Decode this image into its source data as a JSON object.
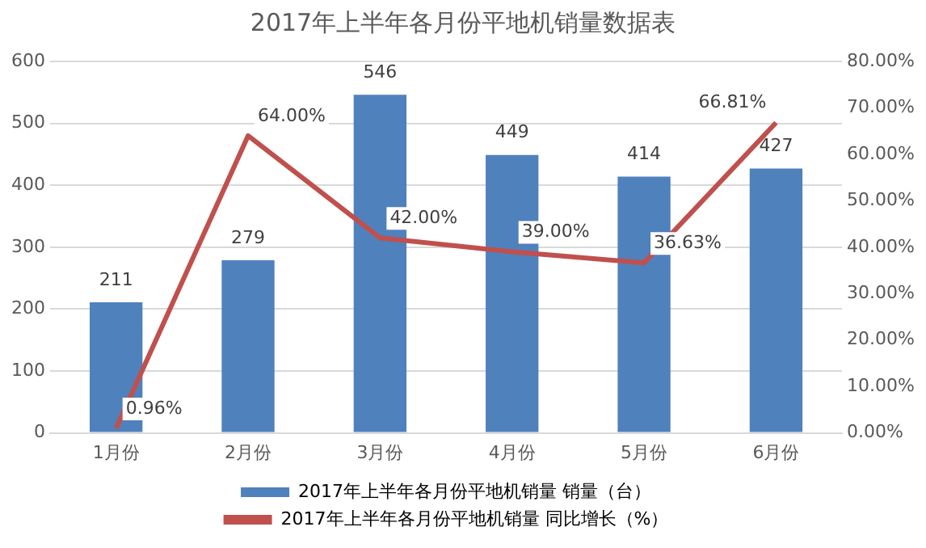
{
  "chart_data": {
    "type": "bar",
    "title": "2017年上半年各月份平地机销量数据表",
    "categories": [
      "1月份",
      "2月份",
      "3月份",
      "4月份",
      "5月份",
      "6月份"
    ],
    "series": [
      {
        "name": "2017年上半年各月份平地机销量 销量（台）",
        "color": "#4f81bd",
        "values": [
          211,
          279,
          546,
          449,
          414,
          427
        ],
        "value_labels": [
          "211",
          "279",
          "546",
          "449",
          "414",
          "427"
        ]
      },
      {
        "name": "2017年上半年各月份平地机销量 同比增长（%）",
        "type": "line",
        "axis": "y2",
        "color": "#c0504d",
        "values": [
          0.96,
          64,
          42,
          39,
          36.63,
          66.81
        ],
        "value_labels": [
          "0.96%",
          "64.00%",
          "42.00%",
          "39.00%",
          "36.63%",
          "66.81%"
        ]
      }
    ],
    "ylim": [
      0,
      600
    ],
    "yticks": [
      0,
      100,
      200,
      300,
      400,
      500,
      600
    ],
    "y2lim": [
      0,
      80
    ],
    "y2ticks": [
      {
        "value": 0,
        "label": "0.00%"
      },
      {
        "value": 10,
        "label": "10.00%"
      },
      {
        "value": 20,
        "label": "20.00%"
      },
      {
        "value": 30,
        "label": "30.00%"
      },
      {
        "value": 40,
        "label": "40.00%"
      },
      {
        "value": 50,
        "label": "50.00%"
      },
      {
        "value": 60,
        "label": "60.00%"
      },
      {
        "value": 70,
        "label": "70.00%"
      },
      {
        "value": 80,
        "label": "80.00%"
      }
    ],
    "grid": "y",
    "legend": "bottom",
    "marker": "none"
  }
}
